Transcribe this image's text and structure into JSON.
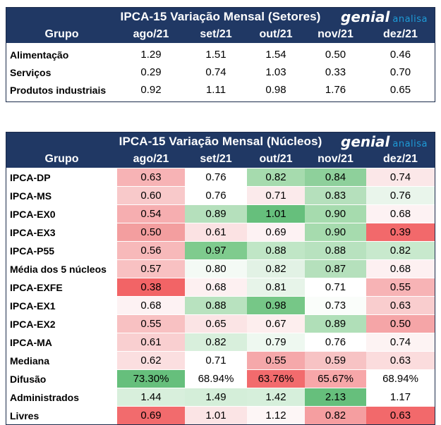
{
  "logo": {
    "brand": "genial",
    "suffix": "analisa"
  },
  "setores": {
    "title": "IPCA-15 Variação Mensal (Setores)",
    "columns": [
      "Grupo",
      "ago/21",
      "set/21",
      "out/21",
      "nov/21",
      "dez/21"
    ],
    "rows": [
      {
        "label": "Alimentação",
        "values": [
          "1.29",
          "1.51",
          "1.54",
          "0.50",
          "0.46"
        ]
      },
      {
        "label": "Serviços",
        "values": [
          "0.29",
          "0.74",
          "1.03",
          "0.33",
          "0.70"
        ]
      },
      {
        "label": "Produtos industriais",
        "values": [
          "0.92",
          "1.11",
          "0.98",
          "1.76",
          "0.65"
        ]
      }
    ]
  },
  "nucleos": {
    "title": "IPCA-15 Variação Mensal (Núcleos)",
    "columns": [
      "Grupo",
      "ago/21",
      "set/21",
      "out/21",
      "nov/21",
      "dez/21"
    ],
    "rows": [
      {
        "label": "IPCA-DP",
        "values": [
          "0.63",
          "0.76",
          "0.82",
          "0.84",
          "0.74"
        ],
        "colors": [
          "#f7b3b5",
          "#ffffff",
          "#a6dbae",
          "#8ed09b",
          "#fbe7e8"
        ]
      },
      {
        "label": "IPCA-MS",
        "values": [
          "0.60",
          "0.76",
          "0.71",
          "0.83",
          "0.76"
        ],
        "colors": [
          "#f8c9ca",
          "#ffffff",
          "#fbeaeb",
          "#b5e0bc",
          "#e9f5eb"
        ]
      },
      {
        "label": "IPCA-EX0",
        "values": [
          "0.54",
          "0.89",
          "1.01",
          "0.90",
          "0.68"
        ],
        "colors": [
          "#f6aeb0",
          "#b5e0bc",
          "#66bf7c",
          "#a6dbae",
          "#fdf2f3"
        ]
      },
      {
        "label": "IPCA-EX3",
        "values": [
          "0.50",
          "0.61",
          "0.69",
          "0.90",
          "0.39"
        ],
        "colors": [
          "#f39e9f",
          "#fbe2e3",
          "#fdf2f3",
          "#a6dbae",
          "#f2696b"
        ]
      },
      {
        "label": "IPCA-P55",
        "values": [
          "0.56",
          "0.97",
          "0.88",
          "0.88",
          "0.82"
        ],
        "colors": [
          "#f7b9ba",
          "#7fcb8e",
          "#c0e6c6",
          "#b8e2bf",
          "#c8e9cd"
        ]
      },
      {
        "label": "Média dos 5 núcleos",
        "values": [
          "0.57",
          "0.80",
          "0.82",
          "0.87",
          "0.68"
        ],
        "colors": [
          "#f8c1c2",
          "#f4faf5",
          "#e2f2e5",
          "#b5e0bc",
          "#fdf0f1"
        ]
      },
      {
        "label": "IPCA-EXFE",
        "values": [
          "0.38",
          "0.68",
          "0.81",
          "0.71",
          "0.55"
        ],
        "colors": [
          "#f26466",
          "#fdf0f1",
          "#e7f4e9",
          "#ffffff",
          "#f7b3b5"
        ]
      },
      {
        "label": "IPCA-EX1",
        "values": [
          "0.68",
          "0.88",
          "0.98",
          "0.73",
          "0.63"
        ],
        "colors": [
          "#fdf2f3",
          "#b8e2bf",
          "#76c787",
          "#fafdfa",
          "#f9cdce"
        ]
      },
      {
        "label": "IPCA-EX2",
        "values": [
          "0.55",
          "0.65",
          "0.67",
          "0.89",
          "0.50"
        ],
        "colors": [
          "#f8c1c2",
          "#fbe4e5",
          "#fdeeee",
          "#b0dfb8",
          "#f5a5a7"
        ]
      },
      {
        "label": "IPCA-MA",
        "values": [
          "0.61",
          "0.82",
          "0.79",
          "0.76",
          "0.74"
        ],
        "colors": [
          "#f9cfd0",
          "#d8efdc",
          "#eef8f0",
          "#ffffff",
          "#fdf3f3"
        ]
      },
      {
        "label": "Mediana",
        "values": [
          "0.62",
          "0.71",
          "0.55",
          "0.59",
          "0.63"
        ],
        "colors": [
          "#fbdfe0",
          "#ffffff",
          "#f5a8aa",
          "#f7c3c4",
          "#fbdcdd"
        ]
      },
      {
        "label": "Difusão",
        "values": [
          "73.30%",
          "68.94%",
          "63.76%",
          "65.67%",
          "68.94%"
        ],
        "colors": [
          "#66bf7c",
          "#ffffff",
          "#f26b6d",
          "#f7a7a9",
          "#ffffff"
        ]
      },
      {
        "label": "Administrados",
        "values": [
          "1.44",
          "1.49",
          "1.42",
          "2.13",
          "1.17"
        ],
        "colors": [
          "#d8efdc",
          "#d4eed9",
          "#d6efdb",
          "#66bf7c",
          "#ffffff"
        ]
      },
      {
        "label": "Livres",
        "values": [
          "0.69",
          "1.01",
          "1.12",
          "0.82",
          "0.63"
        ],
        "colors": [
          "#f26b6d",
          "#fbe4e5",
          "#fdf6f6",
          "#f59ea0",
          "#f2696b"
        ]
      }
    ]
  }
}
